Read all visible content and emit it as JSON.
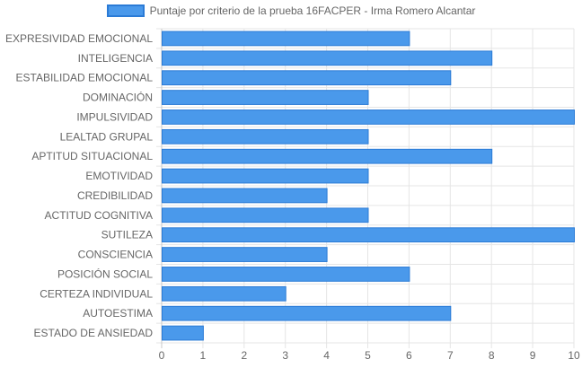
{
  "chart_data": {
    "type": "bar",
    "orientation": "horizontal",
    "categories": [
      "EXPRESIVIDAD EMOCIONAL",
      "INTELIGENCIA",
      "ESTABILIDAD EMOCIONAL",
      "DOMINACIÓN",
      "IMPULSIVIDAD",
      "LEALTAD GRUPAL",
      "APTITUD SITUACIONAL",
      "EMOTIVIDAD",
      "CREDIBILIDAD",
      "ACTITUD COGNITIVA",
      "SUTILEZA",
      "CONSCIENCIA",
      "POSICIÓN SOCIAL",
      "CERTEZA INDIVIDUAL",
      "AUTOESTIMA",
      "ESTADO DE ANSIEDAD"
    ],
    "series": [
      {
        "name": "Puntaje por criterio de la prueba 16FACPER - Irma Romero Alcantar",
        "values": [
          6,
          8,
          7,
          5,
          10,
          5,
          8,
          5,
          4,
          5,
          10,
          4,
          6,
          3,
          7,
          1
        ]
      }
    ],
    "xlim": [
      0,
      10
    ],
    "xticks": [
      "0",
      "1",
      "2",
      "3",
      "4",
      "5",
      "6",
      "7",
      "8",
      "9",
      "10"
    ],
    "grid": true,
    "legend_position": "top",
    "colors": {
      "bar_fill": "#4a99eb",
      "bar_border": "#2b7bd6",
      "grid": "#e5e5e5",
      "text": "#666666"
    }
  }
}
